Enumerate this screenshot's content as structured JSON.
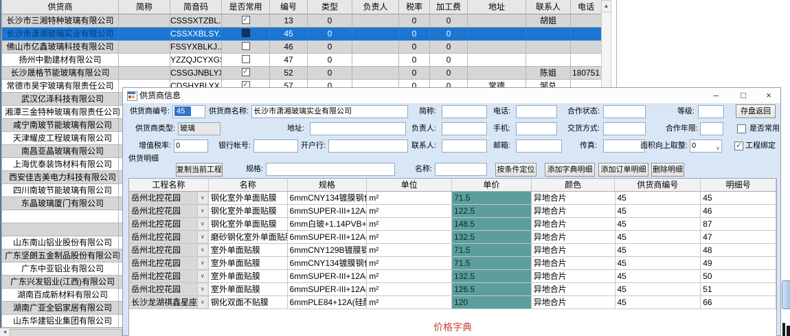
{
  "supplier_table": {
    "columns": [
      "供货商",
      "简称",
      "简音码",
      "是否常用",
      "编号",
      "类型",
      "负责人",
      "税率",
      "加工费",
      "地址",
      "联系人",
      "电话"
    ],
    "rows": [
      {
        "supplier": "长沙市三湘特种玻璃有限公司",
        "abbr": "",
        "code": "CSSSXTZBL..",
        "common": true,
        "no": "13",
        "type": "0",
        "manager": "",
        "tax": "0",
        "fee": "0",
        "address": "",
        "contact": "胡姐",
        "phone": "",
        "selected": false
      },
      {
        "supplier": "长沙市潇湘玻璃实业有限公司",
        "abbr": "",
        "code": "CSSXXBLSY..",
        "common": false,
        "no": "45",
        "type": "0",
        "manager": "",
        "tax": "0",
        "fee": "0",
        "address": "",
        "contact": "",
        "phone": "",
        "selected": true
      },
      {
        "supplier": "佛山市亿鑫玻璃科技有限公司",
        "abbr": "",
        "code": "FSSYXBLKJ..",
        "common": false,
        "no": "46",
        "type": "0",
        "manager": "",
        "tax": "0",
        "fee": "0",
        "address": "",
        "contact": "",
        "phone": "",
        "selected": false
      },
      {
        "supplier": "扬州中勤建材有限公司",
        "abbr": "",
        "code": "YZZQJCYXGS",
        "common": false,
        "no": "47",
        "type": "0",
        "manager": "",
        "tax": "0",
        "fee": "0",
        "address": "",
        "contact": "",
        "phone": "",
        "selected": false
      },
      {
        "supplier": "长沙晟格节能玻璃有限公司",
        "abbr": "",
        "code": "CSSGJNBLYXGS",
        "common": true,
        "no": "52",
        "type": "0",
        "manager": "",
        "tax": "0",
        "fee": "0",
        "address": "",
        "contact": "陈姐",
        "phone": "180751",
        "selected": false
      },
      {
        "supplier": "常德市昊宇玻璃有限责任公司",
        "abbr": "",
        "code": "CDSHYBLYX..",
        "common": true,
        "no": "57",
        "type": "0",
        "manager": "",
        "tax": "0",
        "fee": "0",
        "address": "常德",
        "contact": "邹总",
        "phone": "",
        "selected": false
      }
    ],
    "more_suppliers": [
      "武汉亿泽科技有限公司",
      "湘潭三金特种玻璃有限责任公司",
      "咸宁南玻节能玻璃有限公司",
      "天津耀皮工程玻璃有限公司",
      "南昌亚晶玻璃有限公司",
      "上海优泰装饰材料有限公司",
      "西安佳吉美电力科技有限公司",
      "四川南玻节能玻璃有限公司",
      "东晶玻璃厦门有限公司",
      "",
      "",
      "山东南山铝业股份有限公司",
      "广东坚朗五金制品股份有限公司",
      "广东中亚铝业有限公司",
      "广东兴发铝业(江西)有限公司",
      "湖南百成新材料有限公司",
      "湖南广亚全铝家居有限公司",
      "山东华建铝业集团有限公司"
    ],
    "vscroll_up_glyph": "▲",
    "hscroll_left_glyph": "◄"
  },
  "dialog": {
    "title": "供货商信息",
    "window_buttons": {
      "minimize": "–",
      "maximize": "□",
      "close": "×"
    },
    "form": {
      "supplier_no": {
        "label": "供货商编号:",
        "value": "45"
      },
      "supplier_name": {
        "label": "供货商名称:",
        "value": "长沙市潇湘玻璃实业有限公司"
      },
      "abbr": {
        "label": "简称:",
        "value": ""
      },
      "phone": {
        "label": "电话:",
        "value": ""
      },
      "coop_status": {
        "label": "合作状态:",
        "value": ""
      },
      "grade": {
        "label": "等级:",
        "value": ""
      },
      "save_button": "存盘返回",
      "supplier_type": {
        "label": "供货商类型:",
        "value": "玻璃"
      },
      "address": {
        "label": "地址:",
        "value": ""
      },
      "manager": {
        "label": "负责人:",
        "value": ""
      },
      "mobile": {
        "label": "手机:",
        "value": ""
      },
      "delivery": {
        "label": "交货方式:",
        "value": ""
      },
      "coop_years": {
        "label": "合作年限:",
        "value": ""
      },
      "common_checkbox": {
        "label": "是否常用",
        "checked": false
      },
      "vat": {
        "label": "增值税率:",
        "value": "0"
      },
      "bank_account": {
        "label": "银行帐号:",
        "value": ""
      },
      "bank": {
        "label": "开户行:",
        "value": ""
      },
      "contact": {
        "label": "联系人:",
        "value": ""
      },
      "email": {
        "label": "邮箱:",
        "value": ""
      },
      "fax": {
        "label": "传真:",
        "value": ""
      },
      "area_round": {
        "label": "面积向上取整:",
        "value": "0"
      },
      "bind_checkbox": {
        "label": "工程绑定",
        "checked": true
      }
    },
    "detail": {
      "section_label": "供货明细",
      "copy_button": "复制当前工程",
      "spec_filter": {
        "label": "规格:",
        "value": ""
      },
      "name_filter": {
        "label": "名称:",
        "value": ""
      },
      "locate_button": "按条件定位",
      "add_dict_button": "添加字典明细",
      "add_order_button": "添加订单明细",
      "delete_button": "删除明细",
      "columns": [
        "工程名称",
        "名称",
        "规格",
        "单位",
        "单价",
        "颜色",
        "供货商编号",
        "明细号"
      ],
      "rows": [
        {
          "project": "岳州北控花园",
          "name": "钢化室外单面贴膜",
          "spec": "6mmCNY134镀膜钢化",
          "unit": "m²",
          "price": "71.5",
          "color": "异地合片",
          "supplier_no": "45",
          "detail_no": "45"
        },
        {
          "project": "岳州北控花园",
          "name": "钢化室外单面贴膜",
          "spec": "6mmSUPER-III+12A(硅...",
          "unit": "m²",
          "price": "122.5",
          "color": "异地合片",
          "supplier_no": "45",
          "detail_no": "46"
        },
        {
          "project": "岳州北控花园",
          "name": "钢化室外单面贴膜",
          "spec": "6mm白玻+1.14PVB+6mm...",
          "unit": "m²",
          "price": "148.5",
          "color": "异地合片",
          "supplier_no": "45",
          "detail_no": "87"
        },
        {
          "project": "岳州北控花园",
          "name": "磨砂钢化室外单面贴膜",
          "spec": "6mmSUPER-III+12A(硅...",
          "unit": "m²",
          "price": "132.5",
          "color": "异地合片",
          "supplier_no": "45",
          "detail_no": "47"
        },
        {
          "project": "岳州北控花园",
          "name": "室外单面贴膜",
          "spec": "6mmCNY129B镀膜钢化",
          "unit": "m²",
          "price": "71.5",
          "color": "异地合片",
          "supplier_no": "45",
          "detail_no": "48"
        },
        {
          "project": "岳州北控花园",
          "name": "室外单面贴膜",
          "spec": "6mmCNY134镀膜钢化",
          "unit": "m²",
          "price": "71.5",
          "color": "异地合片",
          "supplier_no": "45",
          "detail_no": "49"
        },
        {
          "project": "岳州北控花园",
          "name": "室外单面贴膜",
          "spec": "6mmSUPER-III+12A(硅...",
          "unit": "m²",
          "price": "132.5",
          "color": "异地合片",
          "supplier_no": "45",
          "detail_no": "50"
        },
        {
          "project": "岳州北控花园",
          "name": "室外单面贴膜",
          "spec": "6mmSUPER-III+12A(硅...",
          "unit": "m²",
          "price": "126.5",
          "color": "异地合片",
          "supplier_no": "45",
          "detail_no": "51"
        },
        {
          "project": "长沙龙湖祺鑫星座",
          "name": "钢化双面不贴膜",
          "spec": "6mmPLE84+12A(硅酮胶...",
          "unit": "m²",
          "price": "120",
          "color": "异地合片",
          "supplier_no": "45",
          "detail_no": "66"
        }
      ],
      "footer_label": "价格字典"
    }
  },
  "colors": {
    "selected_row": "#1b75d1",
    "price_cell": "#5c9e9e",
    "dialog_body": "#d8e6f6",
    "footer_label_red": "#c9403d"
  }
}
